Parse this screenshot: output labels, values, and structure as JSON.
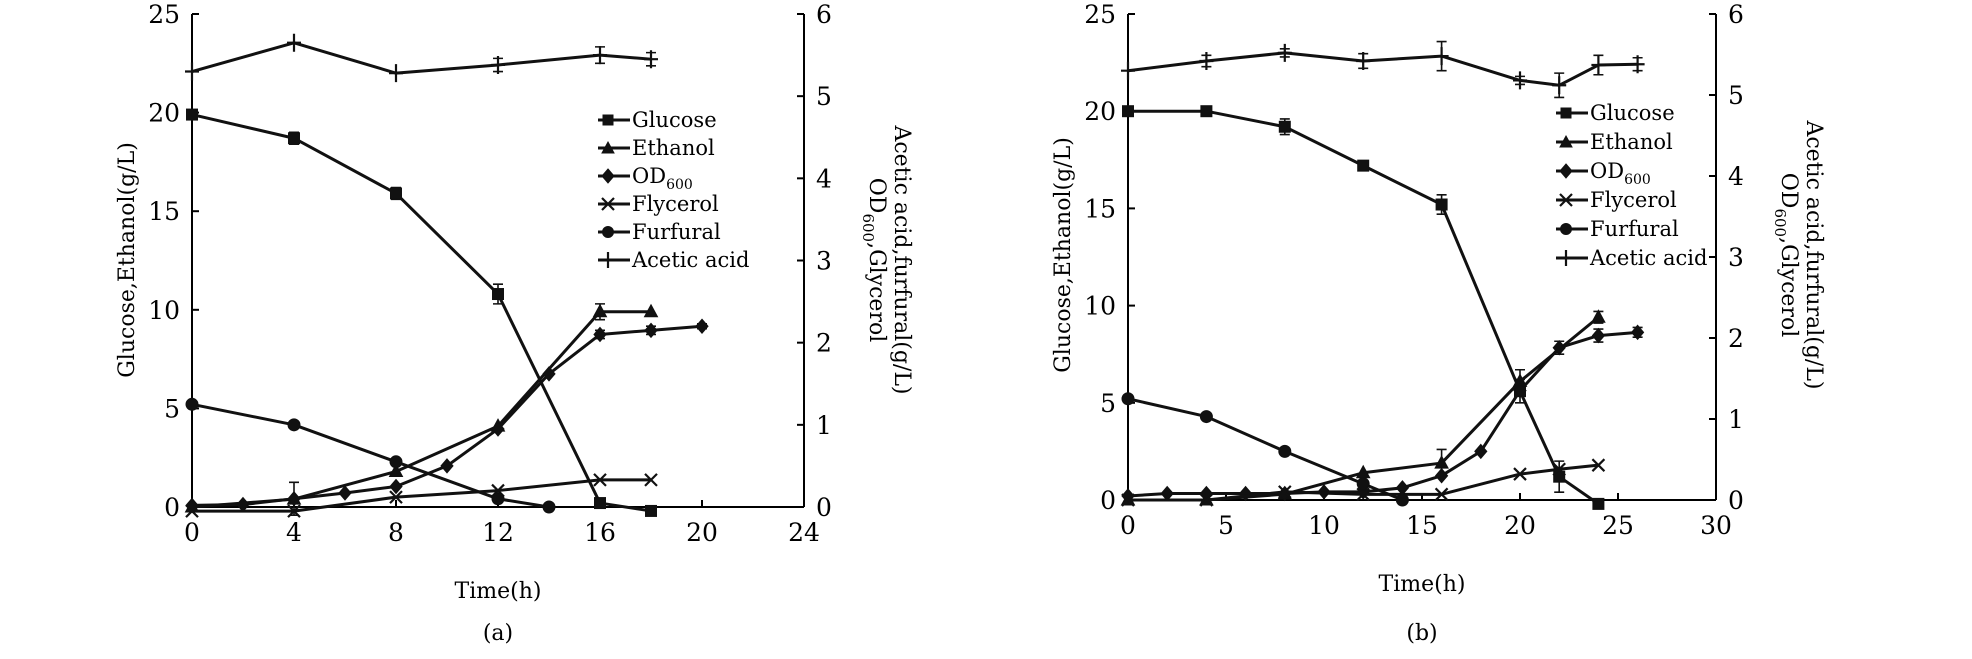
{
  "chart_data": [
    {
      "type": "line",
      "caption": "(a)",
      "xlabel": "Time(h)",
      "ylabel_left": "Glucose,Ethanol(g/L)",
      "ylabel_right_line1": "OD600,Glycerol",
      "ylabel_right_line1_main": "OD",
      "ylabel_right_line1_sub": "600",
      "ylabel_right_line1_tail": ",Glycerol",
      "ylabel_right_line2": "Acetic acid,furfural(g/L)",
      "xlim": [
        0,
        24
      ],
      "xticks": [
        0,
        4,
        8,
        12,
        16,
        20,
        24
      ],
      "ylim_left": [
        0,
        25
      ],
      "yticks_left": [
        0,
        5,
        10,
        15,
        20,
        25
      ],
      "ylim_right": [
        0,
        6
      ],
      "yticks_right": [
        0,
        1,
        2,
        3,
        4,
        5,
        6
      ],
      "legend_position": "right-center",
      "legend": [
        {
          "label": "Glucose",
          "marker": "square"
        },
        {
          "label": "Ethanol",
          "marker": "triangle"
        },
        {
          "label": "OD600",
          "main": "OD",
          "sub": "600",
          "marker": "diamond"
        },
        {
          "label": "Flycerol",
          "marker": "x"
        },
        {
          "label": "Furfural",
          "marker": "circle"
        },
        {
          "label": "Acetic acid",
          "marker": "plus"
        }
      ],
      "series": [
        {
          "name": "Glucose",
          "axis": "left",
          "marker": "square",
          "x": [
            0,
            4,
            8,
            12,
            16,
            18
          ],
          "y": [
            19.9,
            18.7,
            15.9,
            10.8,
            0.2,
            -0.2
          ],
          "err": [
            0,
            0.3,
            0.3,
            0.5,
            0,
            0
          ]
        },
        {
          "name": "Ethanol",
          "axis": "left",
          "marker": "triangle",
          "x": [
            0,
            4,
            8,
            12,
            16,
            18
          ],
          "y": [
            0,
            0.4,
            1.8,
            4.1,
            9.9,
            9.9
          ],
          "err": [
            0,
            0,
            0,
            0,
            0.4,
            0
          ]
        },
        {
          "name": "OD600",
          "axis": "right",
          "marker": "diamond",
          "x": [
            0,
            2,
            4,
            6,
            8,
            10,
            12,
            14,
            16,
            18,
            20
          ],
          "y": [
            0.02,
            0.03,
            0.1,
            0.17,
            0.25,
            0.5,
            0.95,
            1.62,
            2.1,
            2.15,
            2.2
          ],
          "err": [
            0,
            0,
            0.2,
            0,
            0,
            0,
            0,
            0,
            0.05,
            0.05,
            0.03
          ]
        },
        {
          "name": "Flycerol",
          "axis": "right",
          "marker": "x",
          "x": [
            0,
            4,
            8,
            12,
            16,
            18
          ],
          "y": [
            -0.05,
            -0.05,
            0.12,
            0.2,
            0.33,
            0.33
          ],
          "err": [
            0,
            0,
            0,
            0,
            0,
            0
          ]
        },
        {
          "name": "Furfural",
          "axis": "right",
          "marker": "circle",
          "x": [
            0,
            4,
            8,
            12,
            14
          ],
          "y": [
            1.25,
            1.0,
            0.55,
            0.1,
            0
          ],
          "err": [
            0,
            0,
            0,
            0,
            0
          ]
        },
        {
          "name": "Acetic acid",
          "axis": "right",
          "marker": "plus",
          "x": [
            0,
            4,
            8,
            12,
            16,
            18
          ],
          "y": [
            5.3,
            5.65,
            5.28,
            5.38,
            5.5,
            5.45
          ],
          "err": [
            0,
            0,
            0,
            0.08,
            0.1,
            0.08
          ]
        }
      ]
    },
    {
      "type": "line",
      "caption": "(b)",
      "xlabel": "Time(h)",
      "ylabel_left": "Glucose,Ethanol(g/L)",
      "ylabel_right_line1": "OD600,Glycerol",
      "ylabel_right_line1_main": "OD",
      "ylabel_right_line1_sub": "600",
      "ylabel_right_line1_tail": ",Glycerol",
      "ylabel_right_line2": "Acetic acid,furfural(g/L)",
      "xlim": [
        0,
        30
      ],
      "xticks": [
        0,
        5,
        10,
        15,
        20,
        25,
        30
      ],
      "ylim_left": [
        0,
        25
      ],
      "yticks_left": [
        0,
        5,
        10,
        15,
        20,
        25
      ],
      "ylim_right": [
        0,
        6
      ],
      "yticks_right": [
        0,
        1,
        2,
        3,
        4,
        5,
        6
      ],
      "legend_position": "right-center",
      "legend": [
        {
          "label": "Glucose",
          "marker": "square"
        },
        {
          "label": "Ethanol",
          "marker": "triangle"
        },
        {
          "label": "OD600",
          "main": "OD",
          "sub": "600",
          "marker": "diamond"
        },
        {
          "label": "Flycerol",
          "marker": "x"
        },
        {
          "label": "Furfural",
          "marker": "circle"
        },
        {
          "label": "Acetic acid",
          "marker": "plus"
        }
      ],
      "series": [
        {
          "name": "Glucose",
          "axis": "left",
          "marker": "square",
          "x": [
            0,
            4,
            8,
            12,
            16,
            20,
            22,
            24
          ],
          "y": [
            20,
            20,
            19.2,
            17.2,
            15.2,
            5.6,
            1.2,
            -0.2
          ],
          "err": [
            0,
            0,
            0.4,
            0,
            0.5,
            0.6,
            0.8,
            0
          ]
        },
        {
          "name": "Ethanol",
          "axis": "left",
          "marker": "triangle",
          "x": [
            0,
            4,
            8,
            12,
            16,
            20,
            24
          ],
          "y": [
            0,
            0,
            0.3,
            1.4,
            1.9,
            6.1,
            9.4
          ],
          "err": [
            0,
            0,
            0,
            0,
            0.7,
            0.6,
            0.3
          ]
        },
        {
          "name": "OD600",
          "axis": "right",
          "marker": "diamond",
          "x": [
            0,
            2,
            4,
            6,
            8,
            10,
            12,
            14,
            16,
            18,
            20,
            22,
            24,
            26
          ],
          "y": [
            0.05,
            0.08,
            0.08,
            0.08,
            0.08,
            0.1,
            0.1,
            0.15,
            0.3,
            0.6,
            1.35,
            1.88,
            2.03,
            2.07
          ],
          "err": [
            0,
            0,
            0,
            0,
            0,
            0,
            0,
            0,
            0,
            0,
            0.05,
            0.08,
            0.08,
            0.06
          ]
        },
        {
          "name": "Flycerol",
          "axis": "right",
          "marker": "x",
          "x": [
            0,
            4,
            8,
            12,
            16,
            20,
            22,
            24
          ],
          "y": [
            0,
            0,
            0.1,
            0.07,
            0.07,
            0.32,
            0.38,
            0.43
          ],
          "err": [
            0,
            0,
            0,
            0,
            0,
            0,
            0,
            0
          ]
        },
        {
          "name": "Furfural",
          "axis": "right",
          "marker": "circle",
          "x": [
            0,
            4,
            8,
            12,
            14
          ],
          "y": [
            1.25,
            1.03,
            0.6,
            0.2,
            0
          ],
          "err": [
            0,
            0,
            0,
            0,
            0
          ]
        },
        {
          "name": "Acetic acid",
          "axis": "right",
          "marker": "plus",
          "x": [
            0,
            4,
            8,
            12,
            16,
            20,
            22,
            24,
            26
          ],
          "y": [
            5.3,
            5.42,
            5.52,
            5.42,
            5.48,
            5.18,
            5.12,
            5.37,
            5.38
          ],
          "err": [
            0,
            0.07,
            0.05,
            0.09,
            0.18,
            0.05,
            0.15,
            0.12,
            0.08
          ]
        }
      ]
    }
  ]
}
